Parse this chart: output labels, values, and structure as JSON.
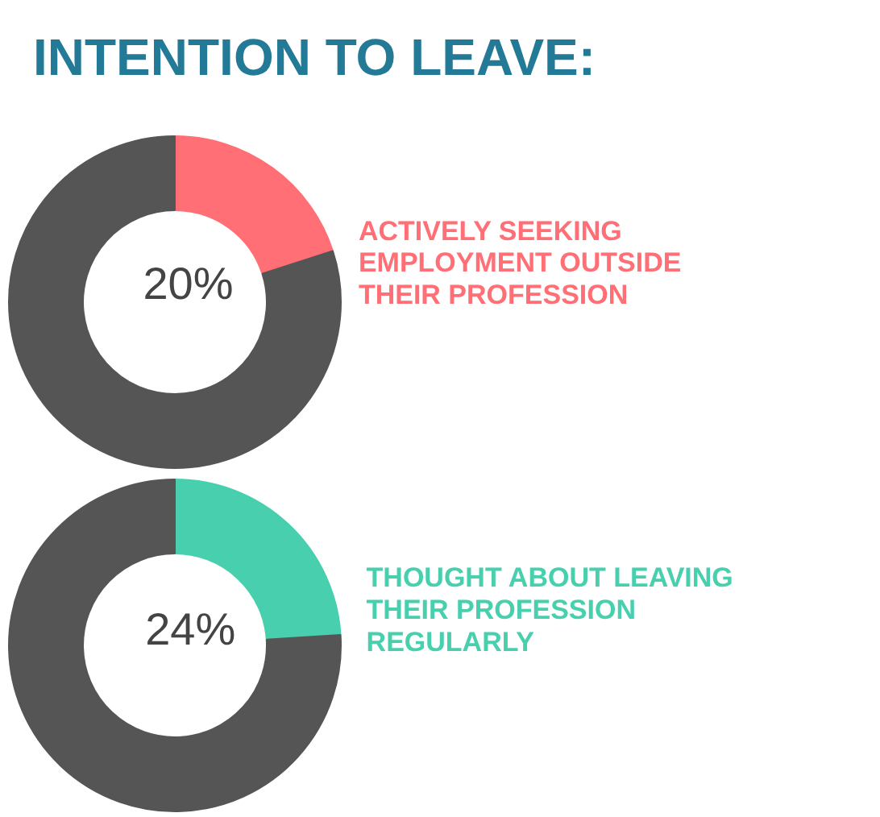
{
  "chart_data": [
    {
      "type": "donut",
      "title": "INTENTION TO LEAVE:",
      "categories": [
        "ACTIVELY SEEKING EMPLOYMENT OUTSIDE THEIR PROFESSION",
        null
      ],
      "values": [
        20,
        80
      ],
      "colors": [
        "#ff6f75",
        "#555555"
      ],
      "value_labels": [
        "20%",
        null
      ],
      "legend": false
    },
    {
      "type": "donut",
      "categories": [
        "THOUGHT ABOUT LEAVING THEIR PROFESSION REGULARLY",
        null
      ],
      "values": [
        24,
        76
      ],
      "colors": [
        "#48cfad",
        "#555555"
      ],
      "value_labels": [
        "24%",
        null
      ],
      "legend": false
    }
  ]
}
